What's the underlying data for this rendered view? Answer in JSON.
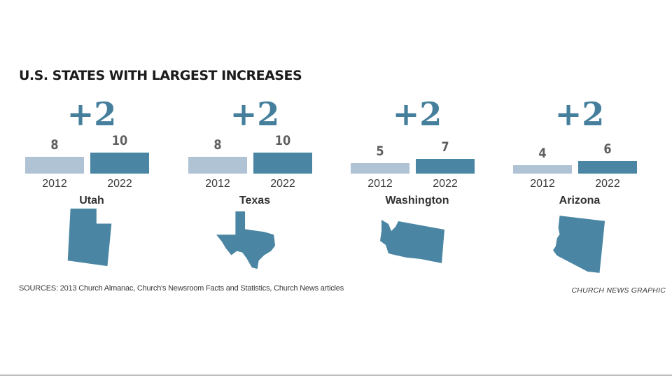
{
  "title": "U.S. STATES WITH LARGEST INCREASES",
  "sources": "SOURCES: 2013 Church Almanac, Church's Newsroom Facts and Statistics, Church News articles",
  "credit": "CHURCH NEWS GRAPHIC",
  "colors": {
    "bar_2012": "#afc3d4",
    "bar_2022": "#4a86a3",
    "accent": "#457f9c",
    "shape": "#4a86a3"
  },
  "chart_data": {
    "type": "bar",
    "title": "U.S. STATES WITH LARGEST INCREASES",
    "categories": [
      "2012",
      "2022"
    ],
    "states": [
      {
        "name": "Utah",
        "change": "+2",
        "values": {
          "2012": 8,
          "2022": 10
        },
        "labels": {
          "v2012": "8",
          "v2022": "10"
        },
        "shape_icon": "utah-state-icon"
      },
      {
        "name": "Texas",
        "change": "+2",
        "values": {
          "2012": 8,
          "2022": 10
        },
        "labels": {
          "v2012": "8",
          "v2022": "10"
        },
        "shape_icon": "texas-state-icon"
      },
      {
        "name": "Washington",
        "change": "+2",
        "values": {
          "2012": 5,
          "2022": 7
        },
        "labels": {
          "v2012": "5",
          "v2022": "7"
        },
        "shape_icon": "washington-state-icon"
      },
      {
        "name": "Arizona",
        "change": "+2",
        "values": {
          "2012": 4,
          "2022": 6
        },
        "labels": {
          "v2012": "4",
          "v2022": "6"
        },
        "shape_icon": "arizona-state-icon"
      }
    ],
    "ylim": [
      0,
      10
    ],
    "grid": false
  }
}
